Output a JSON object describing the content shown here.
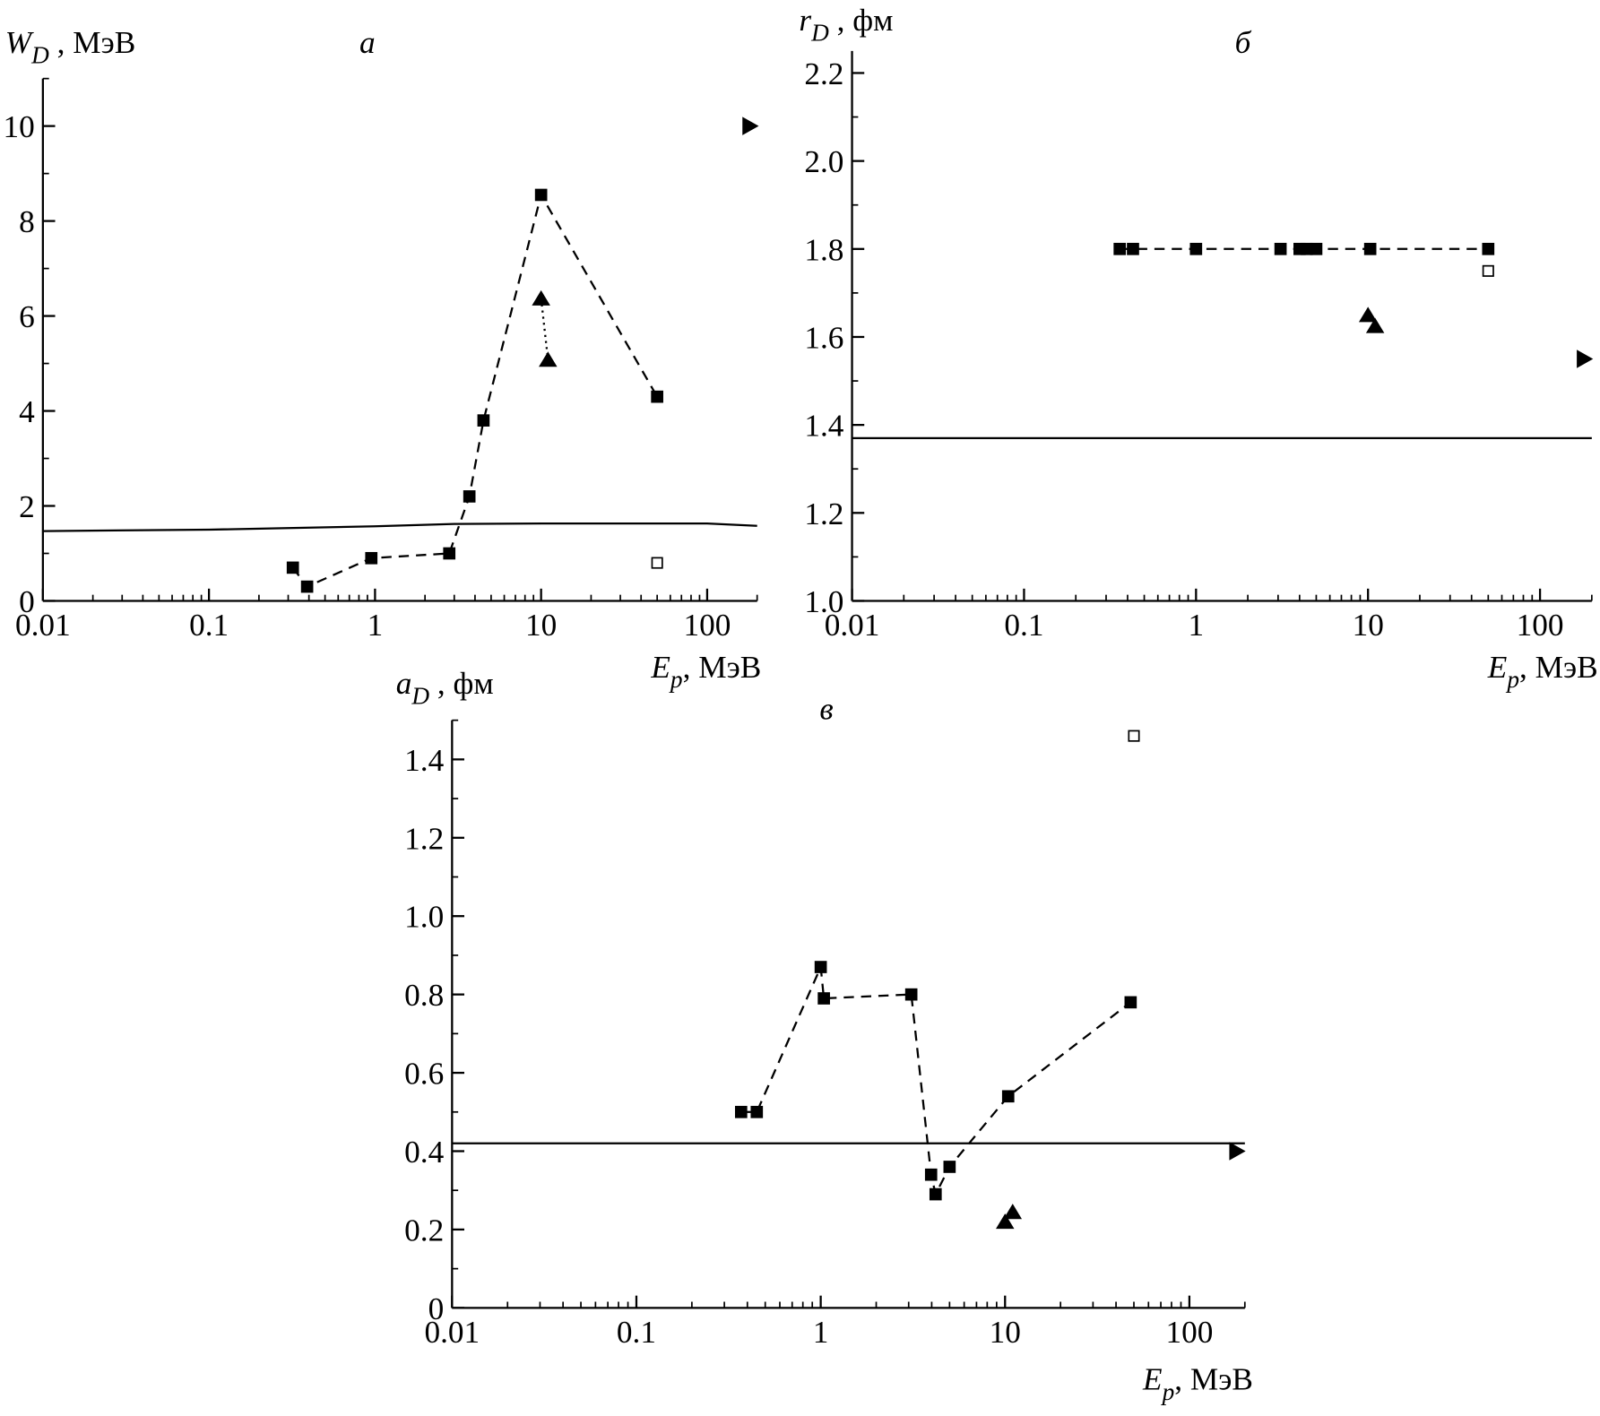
{
  "chart_data": [
    {
      "type": "scatter",
      "title": "а",
      "y_label": {
        "symbol": "W",
        "sub": "D",
        "unit": " , МэВ"
      },
      "x_label": {
        "symbol": "E",
        "sub": "p",
        "unit": ", МэВ"
      },
      "x_scale": "log",
      "minor_ticks": true,
      "xlim": [
        0.01,
        200
      ],
      "xticks": [
        0.01,
        0.1,
        1,
        10,
        100
      ],
      "ylim": [
        0,
        11
      ],
      "yticks": [
        0,
        2,
        4,
        6,
        8,
        10
      ],
      "series": [
        {
          "color": "#000000",
          "marker": "square",
          "line": "dashed",
          "x": [
            0.32,
            0.39,
            0.95,
            2.8,
            3.7,
            4.5,
            10,
            50
          ],
          "values": [
            0.7,
            0.3,
            0.9,
            1.0,
            2.2,
            3.8,
            8.55,
            4.3
          ]
        },
        {
          "color": "#000000",
          "marker": "triangle",
          "line": "dotted",
          "x": [
            10,
            11
          ],
          "values": [
            6.37,
            5.08
          ]
        },
        {
          "color": "#000000",
          "marker": "open-square",
          "line": "none",
          "x": [
            50
          ],
          "values": [
            0.8
          ]
        },
        {
          "color": "#000000",
          "marker": "right-triangle",
          "line": "none",
          "x": [
            180
          ],
          "values": [
            10
          ]
        },
        {
          "color": "#000000",
          "marker": "none",
          "line": "solid",
          "x": [
            0.01,
            0.1,
            1,
            3,
            10,
            100,
            200
          ],
          "values": [
            1.47,
            1.5,
            1.57,
            1.62,
            1.63,
            1.63,
            1.58
          ]
        }
      ]
    },
    {
      "type": "scatter",
      "title": "б",
      "y_label": {
        "symbol": "r",
        "sub": "D",
        "unit": " , фм"
      },
      "x_label": {
        "symbol": "E",
        "sub": "p",
        "unit": ", МэВ"
      },
      "x_scale": "log",
      "minor_ticks": true,
      "xlim": [
        0.01,
        200
      ],
      "xticks": [
        0.01,
        0.1,
        1,
        10,
        100
      ],
      "ylim": [
        1.0,
        2.25
      ],
      "yticks": [
        {
          "value": 1,
          "label": "1.0"
        },
        1.2,
        1.4,
        1.6,
        1.8,
        {
          "value": 2,
          "label": "2.0"
        },
        2.2
      ],
      "series": [
        {
          "color": "#000000",
          "marker": "square",
          "line": "dashed",
          "x": [
            0.36,
            0.43,
            1.0,
            3.1,
            4.0,
            4.4,
            5.0,
            10.3,
            50
          ],
          "values": [
            1.8,
            1.8,
            1.8,
            1.8,
            1.8,
            1.8,
            1.8,
            1.8,
            1.8
          ]
        },
        {
          "color": "#000000",
          "marker": "open-square",
          "line": "none",
          "x": [
            50
          ],
          "values": [
            1.75
          ]
        },
        {
          "color": "#000000",
          "marker": "triangle",
          "line": "none",
          "x": [
            10,
            11
          ],
          "values": [
            1.65,
            1.625
          ]
        },
        {
          "color": "#000000",
          "marker": "right-triangle",
          "line": "none",
          "x": [
            180
          ],
          "values": [
            1.55
          ]
        },
        {
          "color": "#000000",
          "marker": "none",
          "line": "solid",
          "x": [
            0.01,
            200
          ],
          "values": [
            1.37,
            1.37
          ]
        }
      ]
    },
    {
      "type": "scatter",
      "title": "в",
      "y_label": {
        "symbol": "a",
        "sub": "D",
        "unit": " , фм"
      },
      "x_label": {
        "symbol": "E",
        "sub": "p",
        "unit": ", МэВ"
      },
      "x_scale": "log",
      "minor_ticks": true,
      "xlim": [
        0.01,
        200
      ],
      "xticks": [
        0.01,
        0.1,
        1,
        10,
        100
      ],
      "ylim": [
        0,
        1.5
      ],
      "yticks": [
        0,
        0.2,
        0.4,
        0.6,
        0.8,
        {
          "value": 1,
          "label": "1.0"
        },
        1.2,
        1.4
      ],
      "series": [
        {
          "color": "#000000",
          "marker": "square",
          "line": "dashed",
          "x": [
            0.37,
            0.45,
            1.0,
            1.04,
            3.1,
            3.97,
            4.2,
            5.0,
            10.4,
            48
          ],
          "values": [
            0.5,
            0.5,
            0.87,
            0.79,
            0.8,
            0.34,
            0.29,
            0.36,
            0.54,
            0.78
          ]
        },
        {
          "color": "#000000",
          "marker": "open-square",
          "line": "none",
          "x": [
            50
          ],
          "values": [
            1.46
          ]
        },
        {
          "color": "#000000",
          "marker": "triangle",
          "line": "none",
          "x": [
            10,
            11
          ],
          "values": [
            0.22,
            0.245
          ]
        },
        {
          "color": "#000000",
          "marker": "right-triangle",
          "line": "none",
          "x": [
            180
          ],
          "values": [
            0.4
          ]
        },
        {
          "color": "#000000",
          "marker": "none",
          "line": "solid",
          "x": [
            0.01,
            200
          ],
          "values": [
            0.42,
            0.42
          ]
        }
      ]
    }
  ]
}
